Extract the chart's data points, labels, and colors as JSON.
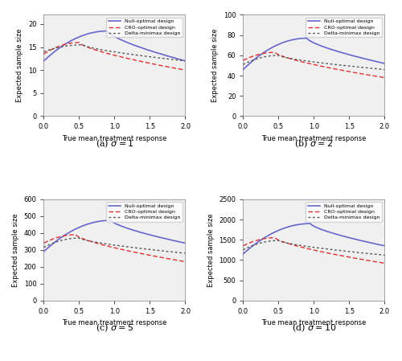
{
  "panels": [
    {
      "label": "(a) $\\sigma = 1$",
      "sigma": 1,
      "ylim": [
        0,
        22
      ],
      "yticks": [
        0,
        5,
        10,
        15,
        20
      ],
      "null_y0": 12,
      "null_peak": 18.5,
      "null_peak_x": 0.9,
      "null_y2": 12,
      "cro_y0": 13.5,
      "cro_peak": 16.0,
      "cro_peak_x": 0.5,
      "cro_y2": 10.0,
      "dm_y0": 14.0,
      "dm_peak": 15.5,
      "dm_peak_x": 0.55,
      "dm_y2": 12.0
    },
    {
      "label": "(b) $\\sigma = 2$",
      "sigma": 2,
      "ylim": [
        0,
        100
      ],
      "yticks": [
        0,
        20,
        40,
        60,
        80,
        100
      ],
      "null_y0": 46,
      "null_peak": 77,
      "null_peak_x": 0.9,
      "null_y2": 52,
      "cro_y0": 55,
      "cro_peak": 63,
      "cro_peak_x": 0.45,
      "cro_y2": 38,
      "dm_y0": 51,
      "dm_peak": 60,
      "dm_peak_x": 0.5,
      "dm_y2": 46
    },
    {
      "label": "(c) $\\sigma = 5$",
      "sigma": 5,
      "ylim": [
        0,
        600
      ],
      "yticks": [
        0,
        100,
        200,
        300,
        400,
        500,
        600
      ],
      "null_y0": 290,
      "null_peak": 475,
      "null_peak_x": 0.95,
      "null_y2": 340,
      "cro_y0": 340,
      "cro_peak": 390,
      "cro_peak_x": 0.45,
      "cro_y2": 230,
      "dm_y0": 315,
      "dm_peak": 370,
      "dm_peak_x": 0.5,
      "dm_y2": 280
    },
    {
      "label": "(d) $\\sigma = 10$",
      "sigma": 10,
      "ylim": [
        0,
        2500
      ],
      "yticks": [
        0,
        500,
        1000,
        1500,
        2000,
        2500
      ],
      "null_y0": 1150,
      "null_peak": 1900,
      "null_peak_x": 0.95,
      "null_y2": 1350,
      "cro_y0": 1350,
      "cro_peak": 1550,
      "cro_peak_x": 0.45,
      "cro_y2": 920,
      "dm_y0": 1250,
      "dm_peak": 1480,
      "dm_peak_x": 0.5,
      "dm_y2": 1120
    }
  ],
  "x_range": [
    0.0,
    2.0
  ],
  "xlabel": "True mean treatment response",
  "ylabel": "Expected sample size",
  "colors": {
    "null": "#6666cc",
    "cro": "#dd3333",
    "dm": "#555555"
  },
  "legend_labels": [
    "Null-optimal design",
    "CRO-optimal design",
    "Delta-minimax design"
  ],
  "background_color": "#f0f0f0"
}
